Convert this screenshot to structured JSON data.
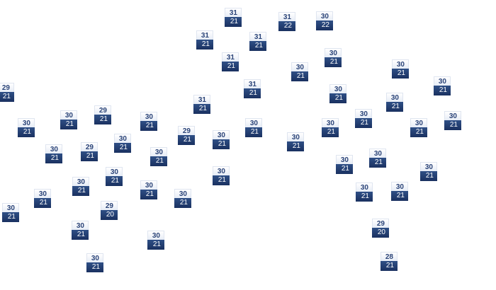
{
  "map": {
    "marker_colors": {
      "high_text": "#2b4478",
      "low_bg": "#1f3a6e",
      "low_text": "#ffffff"
    },
    "markers": [
      {
        "high": "31",
        "low": "21"
      },
      {
        "high": "31",
        "low": "22"
      },
      {
        "high": "30",
        "low": "22"
      },
      {
        "high": "31",
        "low": "21"
      },
      {
        "high": "31",
        "low": "21"
      },
      {
        "high": "30",
        "low": "21"
      },
      {
        "high": "31",
        "low": "21"
      },
      {
        "high": "30",
        "low": "21"
      },
      {
        "high": "30",
        "low": "21"
      },
      {
        "high": "31",
        "low": "21"
      },
      {
        "high": "30",
        "low": "21"
      },
      {
        "high": "29",
        "low": "21"
      },
      {
        "high": "30",
        "low": "21"
      },
      {
        "high": "30",
        "low": "21"
      },
      {
        "high": "31",
        "low": "21"
      },
      {
        "high": "29",
        "low": "21"
      },
      {
        "high": "30",
        "low": "21"
      },
      {
        "high": "30",
        "low": "21"
      },
      {
        "high": "30",
        "low": "21"
      },
      {
        "high": "30",
        "low": "21"
      },
      {
        "high": "30",
        "low": "21"
      },
      {
        "high": "30",
        "low": "21"
      },
      {
        "high": "30",
        "low": "21"
      },
      {
        "high": "30",
        "low": "21"
      },
      {
        "high": "29",
        "low": "21"
      },
      {
        "high": "30",
        "low": "21"
      },
      {
        "high": "30",
        "low": "21"
      },
      {
        "high": "30",
        "low": "21"
      },
      {
        "high": "30",
        "low": "21"
      },
      {
        "high": "29",
        "low": "21"
      },
      {
        "high": "30",
        "low": "21"
      },
      {
        "high": "30",
        "low": "21"
      },
      {
        "high": "30",
        "low": "21"
      },
      {
        "high": "30",
        "low": "21"
      },
      {
        "high": "30",
        "low": "21"
      },
      {
        "high": "30",
        "low": "21"
      },
      {
        "high": "30",
        "low": "21"
      },
      {
        "high": "30",
        "low": "21"
      },
      {
        "high": "30",
        "low": "21"
      },
      {
        "high": "30",
        "low": "21"
      },
      {
        "high": "30",
        "low": "21"
      },
      {
        "high": "30",
        "low": "21"
      },
      {
        "high": "29",
        "low": "20"
      },
      {
        "high": "30",
        "low": "21"
      },
      {
        "high": "30",
        "low": "21"
      },
      {
        "high": "29",
        "low": "20"
      },
      {
        "high": "30",
        "low": "21"
      },
      {
        "high": "30",
        "low": "21"
      },
      {
        "high": "28",
        "low": "21"
      }
    ]
  }
}
